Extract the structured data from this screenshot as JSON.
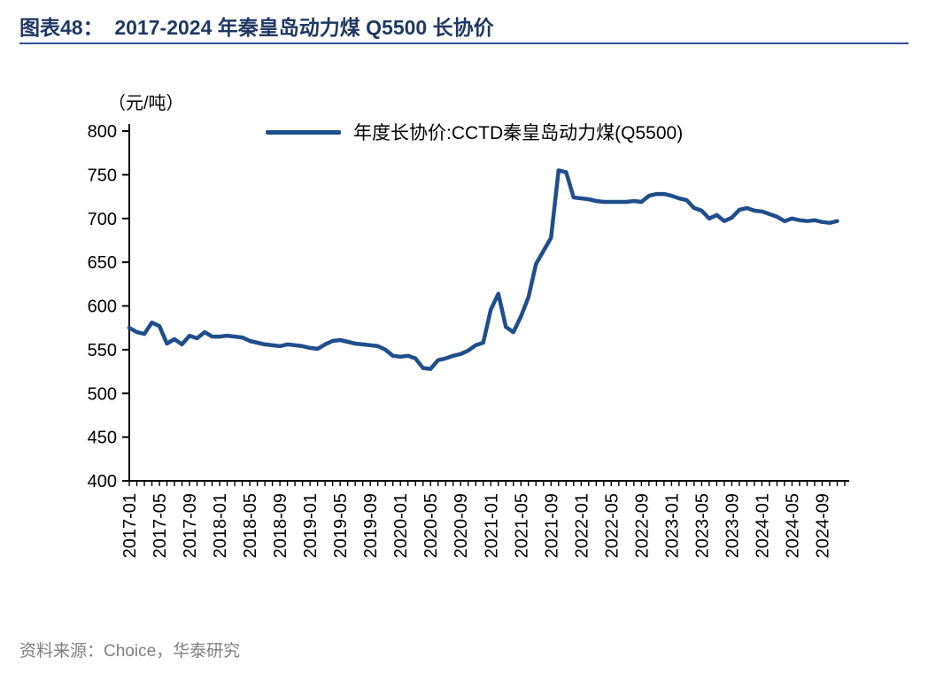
{
  "header": {
    "title": "图表48：  2017-2024 年秦皇岛动力煤 Q5500 长协价"
  },
  "chart_data": {
    "type": "line",
    "title": "2017-2024 年秦皇岛动力煤 Q5500 长协价",
    "unit_label": "（元/吨）",
    "legend": "年度长协价:CCTD秦皇岛动力煤(Q5500)",
    "line_color": "#1f4e8c",
    "axis_color": "#000000",
    "ylim": [
      400,
      800
    ],
    "yticks": [
      400,
      450,
      500,
      550,
      600,
      650,
      700,
      750,
      800
    ],
    "xtick_labels": [
      "2017-01",
      "2017-05",
      "2017-09",
      "2018-01",
      "2018-05",
      "2018-09",
      "2019-01",
      "2019-05",
      "2019-09",
      "2020-01",
      "2020-05",
      "2020-09",
      "2021-01",
      "2021-05",
      "2021-09",
      "2022-01",
      "2022-05",
      "2022-09",
      "2023-01",
      "2023-05",
      "2023-09",
      "2024-01",
      "2024-05",
      "2024-09"
    ],
    "x": [
      "2017-01",
      "2017-02",
      "2017-03",
      "2017-04",
      "2017-05",
      "2017-06",
      "2017-07",
      "2017-08",
      "2017-09",
      "2017-10",
      "2017-11",
      "2017-12",
      "2018-01",
      "2018-02",
      "2018-03",
      "2018-04",
      "2018-05",
      "2018-06",
      "2018-07",
      "2018-08",
      "2018-09",
      "2018-10",
      "2018-11",
      "2018-12",
      "2019-01",
      "2019-02",
      "2019-03",
      "2019-04",
      "2019-05",
      "2019-06",
      "2019-07",
      "2019-08",
      "2019-09",
      "2019-10",
      "2019-11",
      "2019-12",
      "2020-01",
      "2020-02",
      "2020-03",
      "2020-04",
      "2020-05",
      "2020-06",
      "2020-07",
      "2020-08",
      "2020-09",
      "2020-10",
      "2020-11",
      "2020-12",
      "2021-01",
      "2021-02",
      "2021-03",
      "2021-04",
      "2021-05",
      "2021-06",
      "2021-07",
      "2021-08",
      "2021-09",
      "2021-10",
      "2021-11",
      "2021-12",
      "2022-01",
      "2022-02",
      "2022-03",
      "2022-04",
      "2022-05",
      "2022-06",
      "2022-07",
      "2022-08",
      "2022-09",
      "2022-10",
      "2022-11",
      "2022-12",
      "2023-01",
      "2023-02",
      "2023-03",
      "2023-04",
      "2023-05",
      "2023-06",
      "2023-07",
      "2023-08",
      "2023-09",
      "2023-10",
      "2023-11",
      "2023-12",
      "2024-01",
      "2024-02",
      "2024-03",
      "2024-04",
      "2024-05",
      "2024-06",
      "2024-07",
      "2024-08",
      "2024-09",
      "2024-10",
      "2024-11"
    ],
    "values": [
      575,
      570,
      568,
      581,
      577,
      557,
      562,
      556,
      566,
      563,
      570,
      565,
      565,
      566,
      565,
      564,
      560,
      558,
      556,
      555,
      554,
      556,
      555,
      554,
      552,
      551,
      556,
      560,
      561,
      559,
      557,
      556,
      555,
      554,
      550,
      543,
      542,
      543,
      540,
      529,
      528,
      538,
      540,
      543,
      545,
      549,
      555,
      558,
      596,
      614,
      576,
      570,
      588,
      610,
      648,
      663,
      678,
      755,
      753,
      724,
      723,
      722,
      720,
      719,
      719,
      719,
      719,
      720,
      719,
      726,
      728,
      728,
      726,
      723,
      721,
      712,
      709,
      700,
      704,
      697,
      701,
      710,
      712,
      709,
      708,
      705,
      702,
      697,
      700,
      698,
      697,
      698,
      696,
      695,
      697
    ]
  },
  "footer": {
    "source": "资料来源：Choice，华泰研究"
  }
}
